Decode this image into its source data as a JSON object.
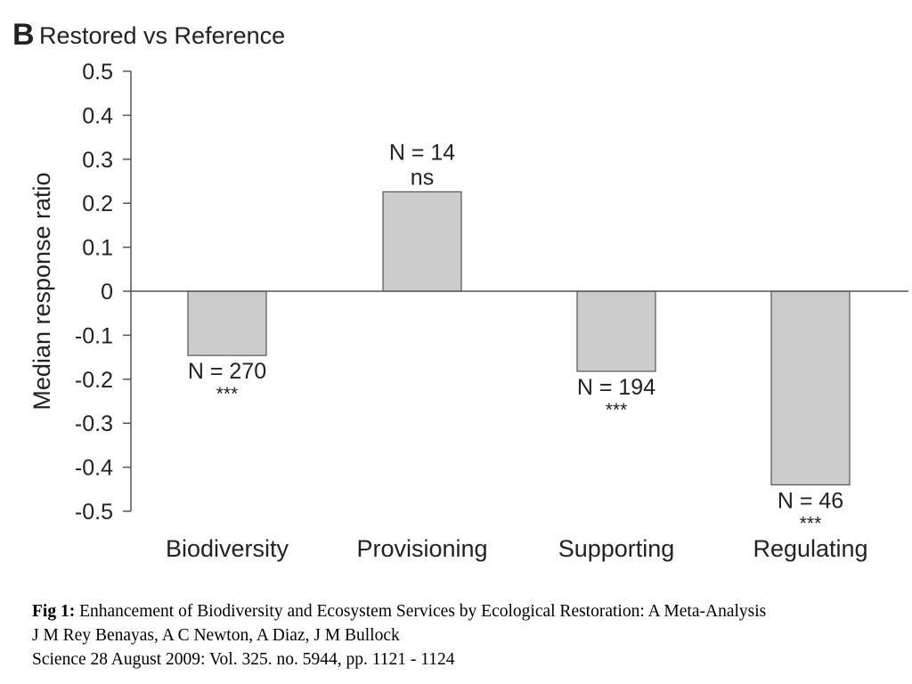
{
  "chart_data": {
    "type": "bar",
    "panel_letter": "B",
    "title": "Restored vs Reference",
    "ylabel": "Median response ratio",
    "xlabel": "",
    "ylim": [
      -0.5,
      0.5
    ],
    "yticks": [
      0.5,
      0.4,
      0.3,
      0.2,
      0.1,
      0,
      -0.1,
      -0.2,
      -0.3,
      -0.4,
      -0.5
    ],
    "ytick_labels": [
      "0.5",
      "0.4",
      "0.3",
      "0.2",
      "0.1",
      "0",
      "-0.1",
      "-0.2",
      "-0.3",
      "-0.4",
      "-0.5"
    ],
    "categories": [
      "Biodiversity",
      "Provisioning",
      "Supporting",
      "Regulating"
    ],
    "values": [
      -0.146,
      0.226,
      -0.182,
      -0.44
    ],
    "n_labels": [
      "N = 270",
      "N = 14",
      "N = 194",
      "N = 46"
    ],
    "significance": [
      "***",
      "ns",
      "***",
      "***"
    ],
    "bar_color": "#cccccc",
    "bar_edge_color": "#555555",
    "grid": false,
    "legend": "none"
  },
  "caption": {
    "fig_label": "Fig 1:",
    "title": " Enhancement of Biodiversity and Ecosystem Services by Ecological Restoration: A Meta-Analysis",
    "authors": "J M Rey Benayas, A C Newton, A Diaz, J M Bullock",
    "citation": "Science 28 August 2009:  Vol. 325. no. 5944, pp. 1121 - 1124"
  }
}
